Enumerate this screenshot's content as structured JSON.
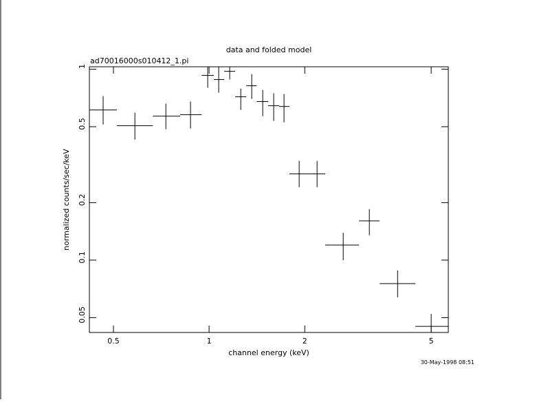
{
  "chart_data": {
    "type": "scatter",
    "title": "data and folded model",
    "subtitle": "ad70016000s010412_1.pi",
    "xlabel": "channel energy (keV)",
    "ylabel": "normalized counts/sec/keV",
    "timestamp": "30-May-1998 08:51",
    "xscale": "log",
    "yscale": "log",
    "xlim": [
      0.42,
      5.66
    ],
    "ylim": [
      0.0418,
      1.03
    ],
    "xticks": [
      0.5,
      1,
      2,
      5
    ],
    "yticks": [
      0.05,
      0.1,
      0.2,
      0.5,
      1
    ],
    "color": "#000000",
    "x": [
      0.464,
      0.584,
      0.731,
      0.874,
      0.99,
      1.072,
      1.161,
      1.258,
      1.362,
      1.475,
      1.597,
      1.721,
      1.921,
      2.187,
      2.643,
      3.194,
      3.92,
      5.0
    ],
    "x_low": [
      0.42,
      0.513,
      0.665,
      0.811,
      0.947,
      1.035,
      1.116,
      1.208,
      1.309,
      1.411,
      1.535,
      1.662,
      1.79,
      2.06,
      2.32,
      2.964,
      3.44,
      4.46
    ],
    "x_high": [
      0.513,
      0.665,
      0.811,
      0.947,
      1.035,
      1.116,
      1.208,
      1.309,
      1.411,
      1.535,
      1.662,
      1.79,
      2.06,
      2.32,
      2.964,
      3.44,
      4.46,
      5.66
    ],
    "values": [
      0.612,
      0.506,
      0.568,
      0.578,
      0.928,
      0.883,
      0.975,
      0.717,
      0.819,
      0.677,
      0.644,
      0.638,
      0.283,
      0.283,
      0.12,
      0.1606,
      0.0754,
      0.045
    ],
    "y_low": [
      0.514,
      0.428,
      0.485,
      0.489,
      0.799,
      0.754,
      0.883,
      0.612,
      0.699,
      0.568,
      0.536,
      0.527,
      0.241,
      0.241,
      0.1,
      0.135,
      0.0638,
      0.0418
    ],
    "y_high": [
      0.723,
      0.592,
      0.66,
      0.677,
      1.03,
      1.03,
      1.03,
      0.792,
      0.943,
      0.779,
      0.748,
      0.741,
      0.331,
      0.331,
      0.139,
      0.185,
      0.0883,
      0.0523
    ]
  }
}
